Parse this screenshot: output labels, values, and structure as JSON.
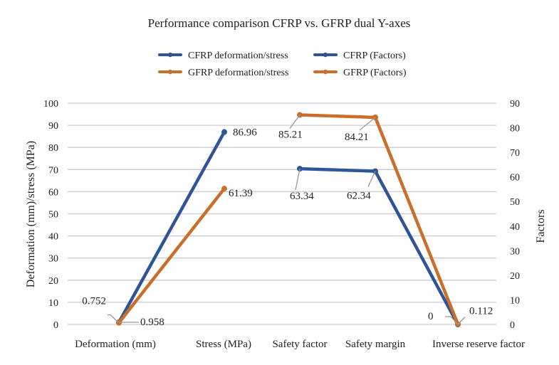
{
  "chart_data": {
    "type": "line",
    "title": "Performance comparison CFRP vs. GFRP dual Y-axes",
    "categories": [
      "Deformation (mm)",
      "Stress (MPa)",
      "Safety factor",
      "Safety margin",
      "Inverse reserve factor"
    ],
    "ylabel": "Deformation (mm)/stress (MPa)",
    "y2label": "Factors",
    "ylim": [
      0,
      100
    ],
    "y2lim": [
      0,
      90
    ],
    "yticks": [
      "0",
      "10",
      "20",
      "30",
      "40",
      "50",
      "60",
      "70",
      "80",
      "90",
      "100"
    ],
    "y2ticks": [
      "0",
      "10",
      "20",
      "30",
      "40",
      "50",
      "60",
      "70",
      "80",
      "90"
    ],
    "legend_position": "top",
    "series": [
      {
        "name": "CFRP deformation/stress",
        "axis": "left",
        "color": "#2e5597",
        "points": [
          [
            0,
            0.958
          ],
          [
            1,
            86.96
          ]
        ],
        "labels": [
          "0.958",
          "86.96"
        ]
      },
      {
        "name": "GFRP deformation/stress",
        "axis": "left",
        "color": "#c86f2b",
        "points": [
          [
            0,
            0.752
          ],
          [
            1,
            61.39
          ]
        ],
        "labels": [
          "0.752",
          "61.39"
        ]
      },
      {
        "name": "CFRP (Factors)",
        "axis": "right",
        "color": "#2e5597",
        "points": [
          [
            2,
            63.34
          ],
          [
            3,
            62.34
          ],
          [
            4,
            0
          ]
        ],
        "labels": [
          "63.34",
          "62.34",
          "0"
        ]
      },
      {
        "name": "GFRP (Factors)",
        "axis": "right",
        "color": "#c86f2b",
        "points": [
          [
            2,
            85.21
          ],
          [
            3,
            84.21
          ],
          [
            4,
            0.112
          ]
        ],
        "labels": [
          "85.21",
          "84.21",
          "0.112"
        ]
      }
    ]
  }
}
